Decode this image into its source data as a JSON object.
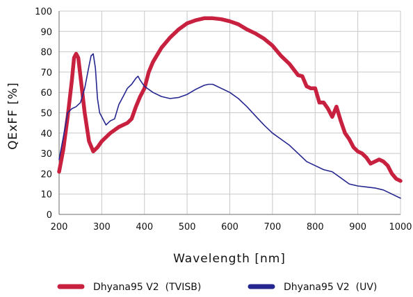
{
  "chart_data": {
    "type": "line",
    "title": "",
    "xlabel": "Wavelength [nm]",
    "ylabel": "QExFF [%]",
    "xlim": [
      200,
      1000
    ],
    "ylim": [
      0,
      100
    ],
    "x_ticks": [
      200,
      300,
      400,
      500,
      600,
      700,
      800,
      900,
      1000
    ],
    "y_ticks": [
      0,
      10,
      20,
      30,
      40,
      50,
      60,
      70,
      80,
      90,
      100
    ],
    "grid": true,
    "legend_position": "bottom",
    "series": [
      {
        "name": "Dhyana95 V2  (TVISB)",
        "color": "#c8203f",
        "x": [
          200,
          210,
          220,
          230,
          235,
          240,
          245,
          250,
          260,
          270,
          280,
          290,
          300,
          320,
          340,
          360,
          370,
          380,
          390,
          400,
          410,
          420,
          440,
          460,
          480,
          500,
          520,
          540,
          560,
          580,
          600,
          620,
          640,
          660,
          680,
          700,
          720,
          740,
          760,
          770,
          780,
          790,
          800,
          810,
          820,
          830,
          840,
          850,
          860,
          870,
          880,
          890,
          900,
          910,
          920,
          930,
          940,
          950,
          960,
          970,
          980,
          990,
          1000
        ],
        "y": [
          21,
          32,
          48,
          66,
          77,
          79,
          77,
          68,
          50,
          36,
          31,
          33,
          36,
          40,
          43,
          45,
          47,
          53,
          58,
          62,
          70,
          75,
          82,
          87,
          91,
          94,
          95.5,
          96.5,
          96.5,
          96,
          95,
          93.5,
          91,
          89,
          86.5,
          83,
          78,
          74,
          68.5,
          68,
          63,
          62,
          62,
          55,
          55,
          52,
          48,
          53,
          46,
          40,
          37,
          33,
          31,
          30,
          28,
          25,
          26,
          27,
          26,
          24,
          20,
          17.5,
          16.5
        ]
      },
      {
        "name": "Dhyana95 V2  (UV)",
        "color": "#24258f",
        "x": [
          200,
          210,
          220,
          230,
          240,
          250,
          260,
          270,
          275,
          280,
          285,
          290,
          295,
          300,
          310,
          320,
          330,
          340,
          350,
          360,
          370,
          380,
          385,
          390,
          400,
          420,
          440,
          460,
          480,
          500,
          520,
          540,
          550,
          560,
          580,
          600,
          620,
          640,
          660,
          680,
          700,
          720,
          740,
          760,
          780,
          800,
          820,
          840,
          860,
          880,
          900,
          920,
          940,
          960,
          980,
          1000
        ],
        "y": [
          27,
          38,
          50,
          52,
          53,
          55,
          62,
          73,
          78,
          79,
          72,
          57,
          50,
          48,
          44,
          46,
          47,
          54,
          58,
          62,
          64,
          67,
          68,
          66,
          63,
          60,
          58,
          57,
          57.5,
          59,
          61.5,
          63.5,
          64,
          64,
          62,
          60,
          57,
          53,
          48.5,
          44,
          40,
          37,
          34,
          30,
          26,
          24,
          22,
          21,
          18,
          15,
          14,
          13.5,
          13,
          12,
          10,
          8
        ]
      }
    ]
  }
}
